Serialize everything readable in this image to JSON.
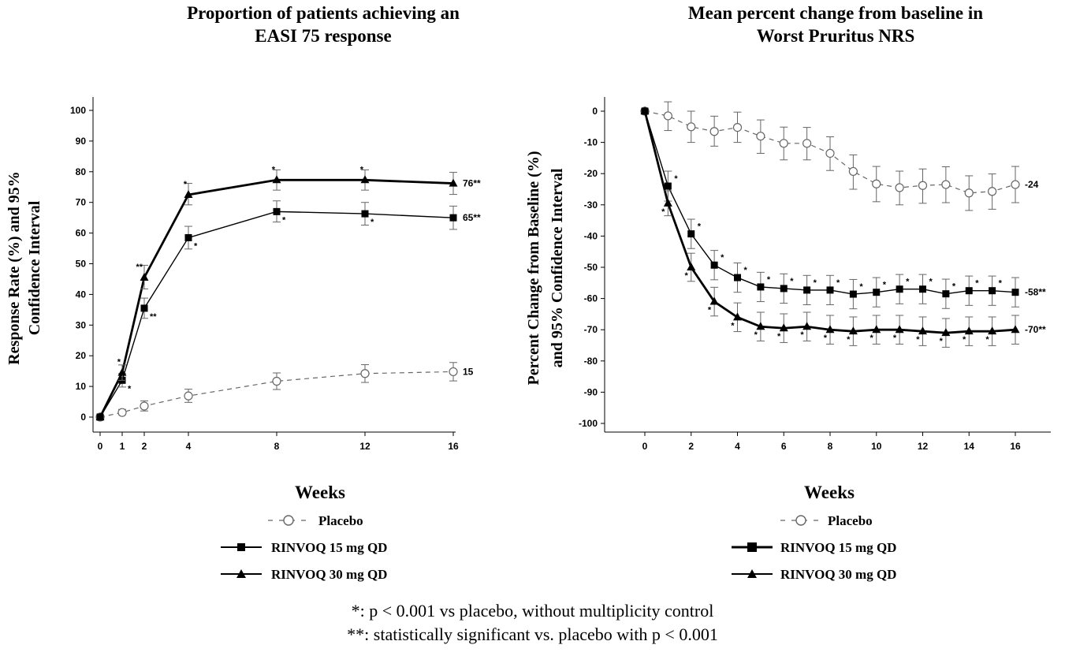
{
  "colors": {
    "axis": "#000000",
    "placebo": "#666666",
    "drug": "#000000",
    "errorbar": "#666666"
  },
  "legend": {
    "placebo": "Placebo",
    "rinvoq15": "RINVOQ 15 mg QD",
    "rinvoq30": "RINVOQ 30 mg QD"
  },
  "footnotes": [
    "*: p < 0.001 vs placebo, without multiplicity control",
    "**: statistically significant vs. placebo with p < 0.001"
  ],
  "chart_data": [
    {
      "type": "line",
      "title": "Proportion of patients achieving an EASI 75 response",
      "title_lines": [
        "Proportion of patients achieving an",
        "EASI 75 response"
      ],
      "xlabel": "Weeks",
      "ylabel": "Response Rate (%) and 95% Confidence Interval",
      "ylabel_lines": [
        "Response Rate (%) and 95%",
        "Confidence Interval"
      ],
      "xlim": [
        0,
        18
      ],
      "ylim": [
        0,
        100
      ],
      "x_ticks": [
        0,
        1,
        2,
        4,
        8,
        12,
        16
      ],
      "x_tick_labels": [
        "0",
        "1",
        "2",
        "4",
        "8",
        "12",
        "16"
      ],
      "y_ticks": [
        0,
        10,
        20,
        30,
        40,
        50,
        60,
        70,
        80,
        90,
        100
      ],
      "y_tick_labels": [
        "0",
        "10",
        "20",
        "30",
        "40",
        "50",
        "60",
        "70",
        "80",
        "90",
        "100"
      ],
      "x": [
        0,
        1,
        2,
        4,
        8,
        12,
        16
      ],
      "series": [
        {
          "name": "Placebo",
          "key": "placebo",
          "marker": "circle",
          "dash": true,
          "values": [
            0,
            1.5,
            3.6,
            6.9,
            11.7,
            14.2,
            14.8
          ],
          "ci": [
            [
              0,
              0
            ],
            [
              0.8,
              2.5
            ],
            [
              2,
              5.3
            ],
            [
              4.8,
              9.1
            ],
            [
              9,
              14.4
            ],
            [
              11.3,
              17.1
            ],
            [
              11.8,
              17.8
            ]
          ],
          "stars": [
            "",
            "",
            "",
            "",
            "",
            "",
            ""
          ],
          "end_label": "15"
        },
        {
          "name": "RINVOQ 15 mg QD",
          "key": "rinvoq15",
          "marker": "square",
          "dash": false,
          "bold": false,
          "values": [
            0,
            12,
            35.5,
            58.5,
            67,
            66.3,
            65
          ],
          "ci": [
            [
              0,
              0
            ],
            [
              9.8,
              14.2
            ],
            [
              32.2,
              38.8
            ],
            [
              54.8,
              62.2
            ],
            [
              63.6,
              70.5
            ],
            [
              62.6,
              70
            ],
            [
              61.2,
              68.8
            ]
          ],
          "stars": [
            "",
            "*",
            "**",
            "*",
            "*",
            "*",
            ""
          ],
          "end_label": "65**"
        },
        {
          "name": "RINVOQ 30 mg QD",
          "key": "rinvoq30",
          "marker": "triangle",
          "dash": false,
          "bold": true,
          "values": [
            0,
            14.5,
            45.5,
            72.5,
            77.3,
            77.3,
            76.2
          ],
          "ci": [
            [
              0,
              0
            ],
            [
              12,
              17
            ],
            [
              41.8,
              49.5
            ],
            [
              69.2,
              76.2
            ],
            [
              74,
              80.6
            ],
            [
              74,
              80.6
            ],
            [
              72.6,
              79.8
            ]
          ],
          "stars": [
            "",
            "*",
            "**",
            "*",
            "*",
            "*",
            ""
          ],
          "end_label": "76**"
        }
      ]
    },
    {
      "type": "line",
      "title": "Mean percent change from baseline in Worst Pruritus NRS",
      "title_lines": [
        "Mean percent change from baseline in",
        "Worst Pruritus NRS"
      ],
      "xlabel": "Weeks",
      "ylabel": "Percent Change from Baseline (%) and 95% Confidence Interval",
      "ylabel_lines": [
        "Percent Change from Baseline (%)",
        "and 95% Confidence Interval"
      ],
      "xlim": [
        0,
        18
      ],
      "ylim": [
        -100,
        0
      ],
      "x_ticks": [
        0,
        2,
        4,
        6,
        8,
        10,
        12,
        14,
        16
      ],
      "x_tick_labels": [
        "0",
        "2",
        "4",
        "6",
        "8",
        "10",
        "12",
        "14",
        "16"
      ],
      "y_ticks": [
        0,
        -10,
        -20,
        -30,
        -40,
        -50,
        -60,
        -70,
        -80,
        -90,
        -100
      ],
      "y_tick_labels": [
        "0",
        "-10",
        "-20",
        "-30",
        "-40",
        "-50",
        "-60",
        "-70",
        "-80",
        "-90",
        "-100"
      ],
      "x": [
        0,
        1,
        2,
        3,
        4,
        5,
        6,
        7,
        8,
        9,
        10,
        11,
        12,
        13,
        14,
        15,
        16
      ],
      "series": [
        {
          "name": "Placebo",
          "key": "placebo",
          "marker": "circle",
          "dash": true,
          "values": [
            0,
            -1.5,
            -5,
            -6.5,
            -5.2,
            -8,
            -10.3,
            -10.3,
            -13.5,
            -19.3,
            -23.3,
            -24.5,
            -23.8,
            -23.5,
            -26.2,
            -25.7,
            -23.5
          ],
          "ci": [
            [
              0,
              0
            ],
            [
              -6.2,
              3
            ],
            [
              -10,
              0
            ],
            [
              -11.2,
              -1.6
            ],
            [
              -10,
              -0.3
            ],
            [
              -13.5,
              -2.8
            ],
            [
              -15.6,
              -5.1
            ],
            [
              -15.6,
              -5.2
            ],
            [
              -19,
              -8.2
            ],
            [
              -25,
              -14
            ],
            [
              -29,
              -17.7
            ],
            [
              -30,
              -19.2
            ],
            [
              -29.5,
              -18.5
            ],
            [
              -29.3,
              -17.8
            ],
            [
              -31.8,
              -20.7
            ],
            [
              -31.4,
              -20.1
            ],
            [
              -29.3,
              -17.7
            ]
          ],
          "stars": [
            "",
            "",
            "",
            "",
            "",
            "",
            "",
            "",
            "",
            "",
            "",
            "",
            "",
            "",
            "",
            "",
            ""
          ],
          "end_label": "-24"
        },
        {
          "name": "RINVOQ 15 mg QD",
          "key": "rinvoq15",
          "marker": "square",
          "dash": false,
          "bold": false,
          "values": [
            0,
            -24,
            -39.3,
            -49.3,
            -53.3,
            -56.3,
            -56.8,
            -57.3,
            -57.3,
            -58.6,
            -58,
            -57,
            -57,
            -58.5,
            -57.5,
            -57.5,
            -58
          ],
          "ci": [
            [
              0,
              0
            ],
            [
              -28.8,
              -19.2
            ],
            [
              -44,
              -34.6
            ],
            [
              -54,
              -44.6
            ],
            [
              -58,
              -48.6
            ],
            [
              -61,
              -51.6
            ],
            [
              -61.5,
              -52.1
            ],
            [
              -62,
              -52.6
            ],
            [
              -62,
              -52.6
            ],
            [
              -63.3,
              -53.9
            ],
            [
              -62.7,
              -53.3
            ],
            [
              -61.7,
              -52.3
            ],
            [
              -61.7,
              -52.3
            ],
            [
              -63.2,
              -53.8
            ],
            [
              -62.2,
              -52.8
            ],
            [
              -62.2,
              -52.8
            ],
            [
              -62.7,
              -53.3
            ]
          ],
          "stars": [
            "",
            "*",
            "*",
            "*",
            "*",
            "*",
            "*",
            "*",
            "*",
            "*",
            "*",
            "*",
            "*",
            "*",
            "*",
            "*",
            ""
          ],
          "end_label": "-58**"
        },
        {
          "name": "RINVOQ 30 mg QD",
          "key": "rinvoq30",
          "marker": "triangle",
          "dash": false,
          "bold": true,
          "values": [
            0,
            -29.5,
            -50,
            -61,
            -66,
            -69,
            -69.5,
            -69,
            -70,
            -70.5,
            -70,
            -70,
            -70.5,
            -71,
            -70.5,
            -70.5,
            -70
          ],
          "ci": [
            [
              0,
              0
            ],
            [
              -33.5,
              -25.5
            ],
            [
              -54.5,
              -45.5
            ],
            [
              -65.6,
              -56.4
            ],
            [
              -70.6,
              -61.4
            ],
            [
              -73.6,
              -64.4
            ],
            [
              -74.1,
              -64.9
            ],
            [
              -73.6,
              -64.4
            ],
            [
              -74.6,
              -65.4
            ],
            [
              -75.1,
              -65.9
            ],
            [
              -74.6,
              -65.4
            ],
            [
              -74.6,
              -65.4
            ],
            [
              -75.1,
              -65.9
            ],
            [
              -75.6,
              -66.4
            ],
            [
              -75.1,
              -65.9
            ],
            [
              -75.1,
              -65.9
            ],
            [
              -74.6,
              -65.4
            ]
          ],
          "stars": [
            "",
            "*",
            "*",
            "*",
            "*",
            "*",
            "*",
            "*",
            "*",
            "*",
            "*",
            "*",
            "*",
            "*",
            "*",
            "*",
            ""
          ],
          "end_label": "-70**"
        }
      ]
    }
  ]
}
